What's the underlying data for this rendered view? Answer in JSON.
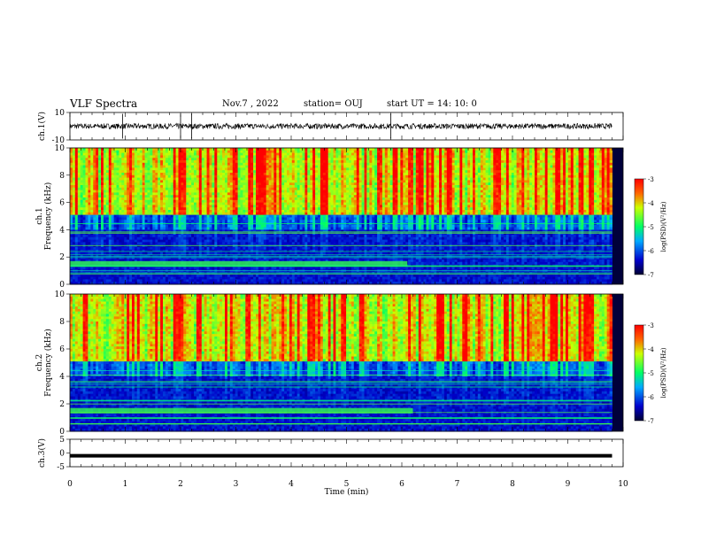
{
  "header": {
    "title": "VLF Spectra",
    "date": "Nov.7 , 2022",
    "station": "station= OUJ",
    "start": "start UT = 14: 10: 0"
  },
  "chart_data": [
    {
      "type": "line",
      "panel": "ch1-waveform",
      "ylabel": "ch.1(V)",
      "ylim": [
        -10,
        10
      ],
      "yticks": [
        "10",
        "-10"
      ],
      "xlim": [
        0,
        10
      ],
      "trace_center": 0,
      "trace_amplitude": 2,
      "trace_end": 9.8,
      "spike_times": [
        0.95,
        2.0,
        2.2,
        5.8
      ]
    },
    {
      "type": "heatmap",
      "panel": "ch1-spectrogram",
      "ylabel_channel": "ch.1",
      "ylabel": "Frequency (kHz)",
      "ylim": [
        0,
        10
      ],
      "yticks": [
        "0",
        "2",
        "4",
        "6",
        "8",
        "10"
      ],
      "xlim": [
        0,
        10
      ],
      "colorbar": {
        "label": "log(PSD)(V²/Hz)",
        "range": [
          -7,
          -3
        ],
        "ticks": [
          "-3",
          "-4",
          "-5",
          "-6",
          "-7"
        ]
      },
      "background_band_khz": [
        1.3,
        1.7
      ],
      "enhanced_band_until_min": 6.1
    },
    {
      "type": "heatmap",
      "panel": "ch2-spectrogram",
      "ylabel_channel": "ch.2",
      "ylabel": "Frequency (kHz)",
      "ylim": [
        0,
        10
      ],
      "yticks": [
        "0",
        "2",
        "4",
        "6",
        "8",
        "10"
      ],
      "xlim": [
        0,
        10
      ],
      "colorbar": {
        "label": "log(PSD)(V²/Hz)",
        "range": [
          -7,
          -3
        ],
        "ticks": [
          "-3",
          "-4",
          "-5",
          "-6",
          "-7"
        ]
      },
      "background_band_khz": [
        1.3,
        1.7
      ],
      "enhanced_band_until_min": 6.2
    },
    {
      "type": "line",
      "panel": "ch3-waveform",
      "ylabel": "ch.3(V)",
      "ylim": [
        -5,
        5
      ],
      "yticks": [
        "5",
        "0",
        "-5"
      ],
      "xlim": [
        0,
        10
      ],
      "constant_value": -1,
      "trace_end": 9.8
    }
  ],
  "xaxis": {
    "label": "Time (min)",
    "ticks": [
      "0",
      "1",
      "2",
      "3",
      "4",
      "5",
      "6",
      "7",
      "8",
      "9",
      "10"
    ]
  },
  "colors": {
    "low": "#000066",
    "mid": "#00ee66",
    "high": "#ff0000"
  }
}
